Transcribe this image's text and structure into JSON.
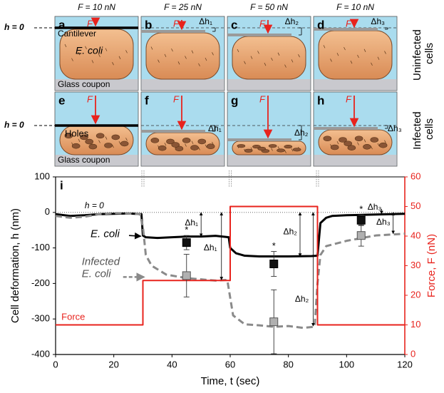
{
  "diagram": {
    "columns": [
      "F = 10 nN",
      "F = 25 nN",
      "F = 50 nN",
      "F = 10 nN"
    ],
    "rows": [
      {
        "side_label": "Uninfected cells",
        "h_zero": "h = 0",
        "panels": [
          {
            "letter": "a",
            "force": "F",
            "cantilever": "Cantilever",
            "cell": "E. coli",
            "substrate": "Glass coupon"
          },
          {
            "letter": "b",
            "force": "F",
            "delta": "Δh₁"
          },
          {
            "letter": "c",
            "force": "F",
            "delta": "Δh₂"
          },
          {
            "letter": "d",
            "force": "F",
            "delta": "Δh₃"
          }
        ]
      },
      {
        "side_label": "Infected cells",
        "h_zero": "h = 0",
        "panels": [
          {
            "letter": "e",
            "force": "F",
            "holes": "Holes",
            "substrate": "Glass coupon"
          },
          {
            "letter": "f",
            "force": "F",
            "delta": "Δh₁"
          },
          {
            "letter": "g",
            "force": "F",
            "delta": "Δh₂"
          },
          {
            "letter": "h",
            "force": "F",
            "delta": "Δh₃"
          }
        ]
      }
    ]
  },
  "chart_data": {
    "type": "line",
    "panel_label": "i",
    "x_label": "Time, t (sec)",
    "y_label": "Cell deformation, h (nm)",
    "y2_label": "Force, F (nN)",
    "xlim": [
      0,
      120
    ],
    "xticks": [
      0,
      20,
      40,
      60,
      80,
      100,
      120
    ],
    "ylim": [
      -400,
      100
    ],
    "yticks": [
      -400,
      -300,
      -200,
      -100,
      0,
      100
    ],
    "y2lim": [
      0,
      60
    ],
    "y2ticks": [
      0,
      10,
      20,
      30,
      40,
      50,
      60
    ],
    "zero_label": "h = 0",
    "phase_boundaries": [
      30,
      60,
      90
    ],
    "series": [
      {
        "name": "E. coli",
        "color": "#000000",
        "style": "solid",
        "x": [
          0,
          5,
          10,
          15,
          20,
          25,
          29.5,
          30,
          31,
          35,
          40,
          45,
          50,
          55,
          59.5,
          60,
          62,
          65,
          70,
          80,
          88,
          90,
          91,
          93,
          95,
          100,
          110,
          120
        ],
        "values": [
          -5,
          -10,
          -8,
          -5,
          -4,
          -3,
          -5,
          -65,
          -70,
          -72,
          -70,
          -68,
          -68,
          -66,
          -70,
          -100,
          -115,
          -122,
          -124,
          -124,
          -123,
          -122,
          -30,
          -15,
          -10,
          -8,
          -6,
          -4
        ]
      },
      {
        "name": "Infected E. coli",
        "color": "#8a8a8a",
        "style": "dashed",
        "x": [
          0,
          5,
          10,
          15,
          20,
          25,
          29,
          30,
          31,
          33,
          38,
          45,
          55,
          59,
          60,
          61,
          65,
          70,
          75,
          80,
          85,
          89,
          90,
          91,
          93,
          100,
          110,
          120
        ],
        "values": [
          -10,
          -15,
          -12,
          -5,
          -2,
          -3,
          -5,
          -40,
          -120,
          -150,
          -175,
          -185,
          -192,
          -190,
          -240,
          -290,
          -315,
          -318,
          -322,
          -320,
          -325,
          -322,
          -200,
          -120,
          -95,
          -80,
          -65,
          -60
        ]
      },
      {
        "name": "Force",
        "color": "#e8231d",
        "style": "solid",
        "axis": "y2",
        "x": [
          0,
          30,
          30,
          60,
          60,
          90,
          90,
          120
        ],
        "values": [
          10,
          10,
          25,
          25,
          50,
          50,
          10,
          10
        ]
      }
    ],
    "markers": [
      {
        "color": "#111111",
        "edge": "#000000",
        "x": [
          45,
          75,
          105
        ],
        "values": [
          -85,
          -145,
          -22
        ],
        "errors": [
          20,
          35,
          15
        ],
        "labels": [
          "*",
          "*",
          "*"
        ]
      },
      {
        "color": "#b0b0b0",
        "edge": "#555555",
        "x": [
          45,
          75,
          105
        ],
        "values": [
          -178,
          -308,
          -65
        ],
        "errors": [
          60,
          90,
          30
        ]
      }
    ],
    "delta_labels": [
      "Δh₁",
      "Δh₁",
      "Δh₂",
      "Δh₂",
      "Δh₃",
      "Δh₃"
    ]
  }
}
